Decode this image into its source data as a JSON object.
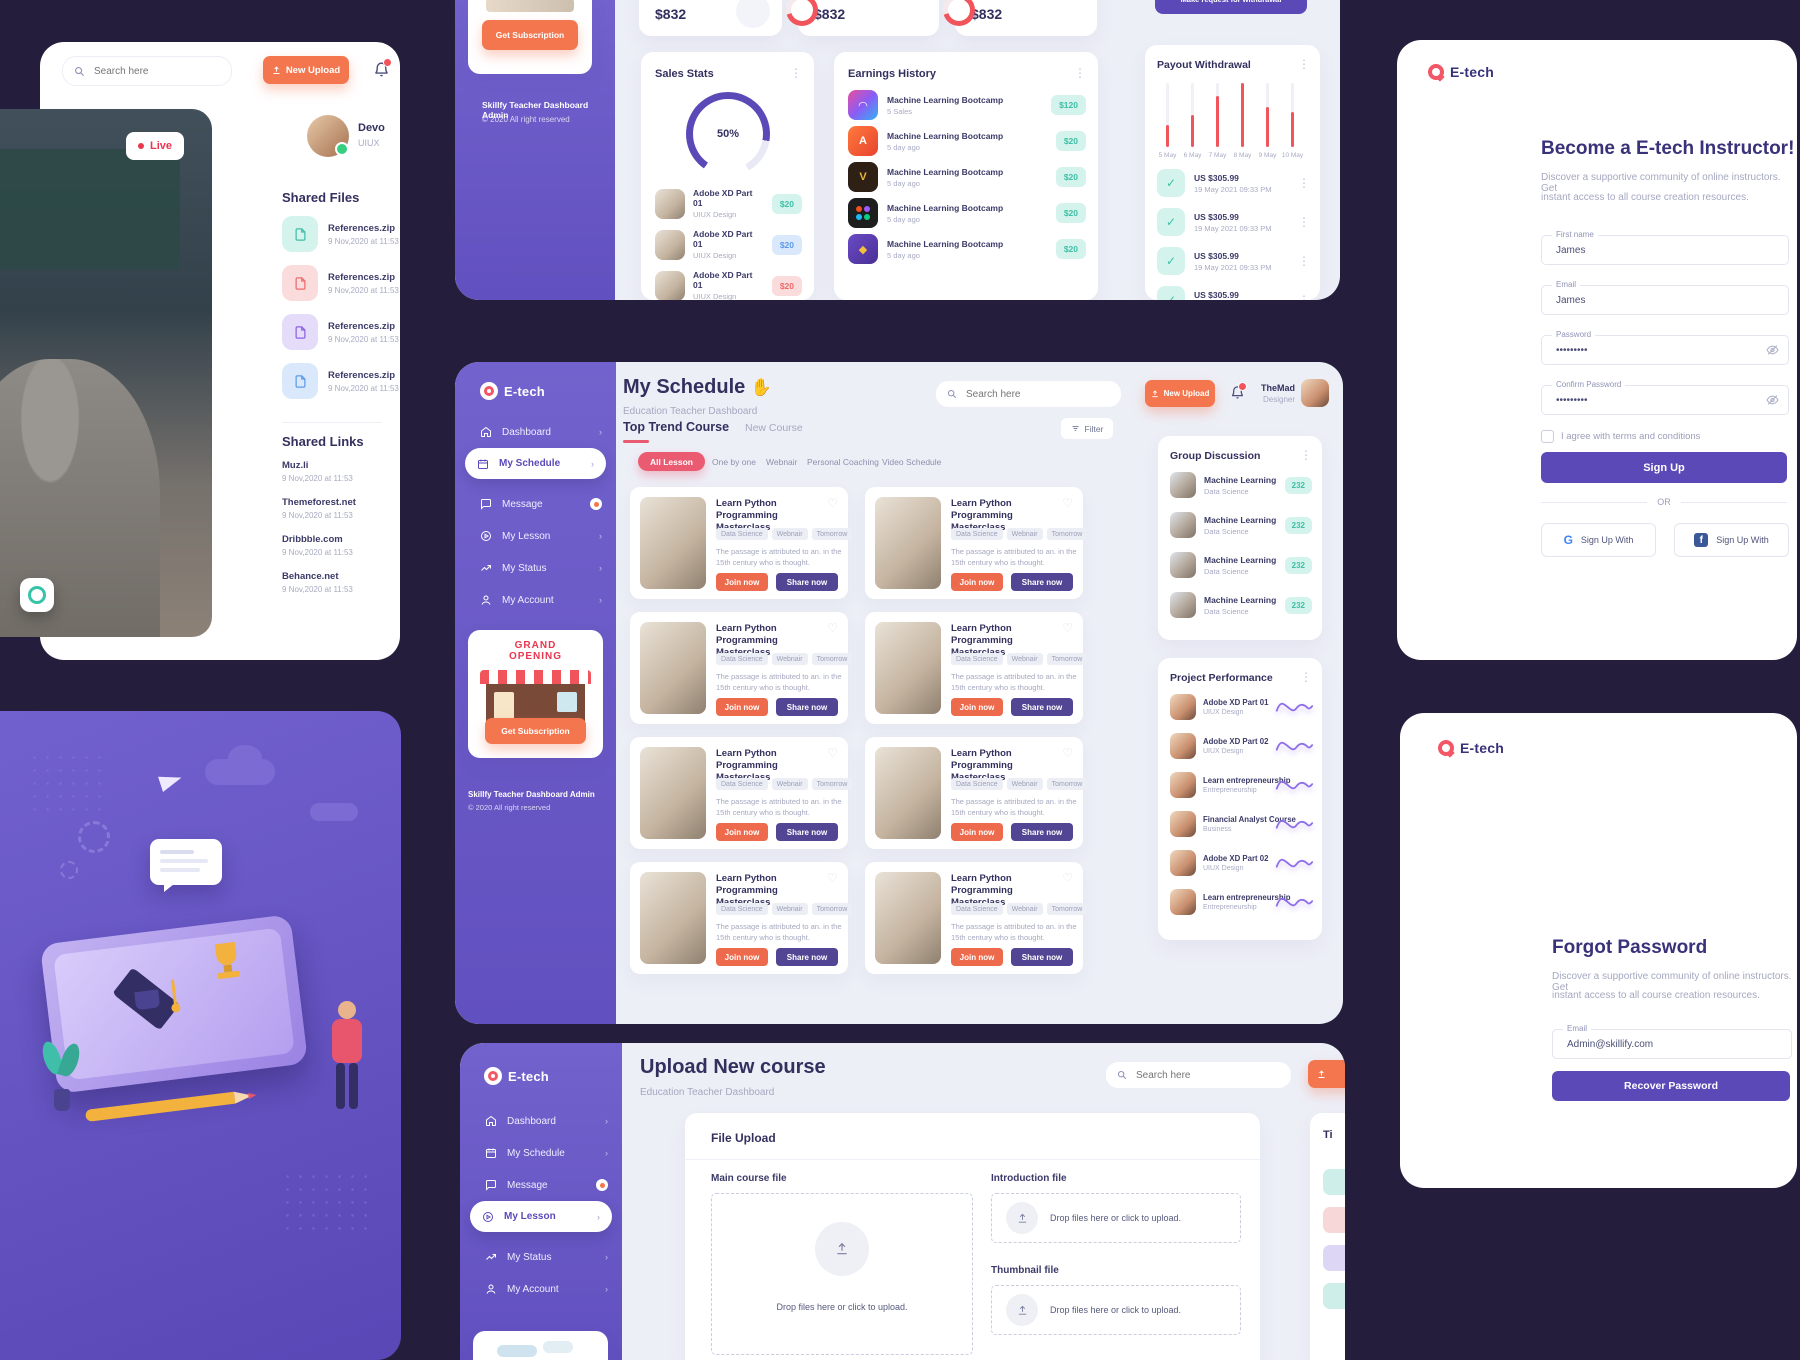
{
  "colors": {
    "bg_dark": "#241e3c",
    "sidebar_purple": "#6d5bc7",
    "accent_orange": "#f4764f",
    "accent_red_pill": "#ea5b72",
    "accent_purple": "#5b49b8",
    "bar_red": "#f2545b",
    "teal": "#3dbfa6",
    "navy_text": "#33305e",
    "muted": "#a5a8c0"
  },
  "nav": {
    "dashboard": "Dashboard",
    "my_schedule": "My Schedule",
    "message": "Message",
    "my_lesson": "My Lesson",
    "my_status": "My Status",
    "my_account": "My Account"
  },
  "sidebar_common": {
    "subscription_label": "Get Subscription",
    "footer_line1": "Skillfy Teacher Dashboard Admin",
    "footer_line2": "© 2020 All right reserved",
    "promo_line1": "GRAND",
    "promo_line2": "OPENING"
  },
  "top_left": {
    "search_placeholder": "Search here",
    "new_upload_label": "New Upload",
    "live_label": "Live",
    "profile": {
      "name": "Devo",
      "role": "UIUX"
    },
    "shared_files": {
      "title": "Shared Files",
      "items": [
        {
          "name": "References.zip",
          "date": "9 Nov,2020 at 11:53",
          "tone": "tone-teal"
        },
        {
          "name": "References.zip",
          "date": "9 Nov,2020 at 11:53",
          "tone": "tone-pink"
        },
        {
          "name": "References.zip",
          "date": "9 Nov,2020 at 11:53",
          "tone": "tone-purple"
        },
        {
          "name": "References.zip",
          "date": "9 Nov,2020 at 11:53",
          "tone": "tone-blue"
        }
      ]
    },
    "shared_links": {
      "title": "Shared Links",
      "items": [
        {
          "name": "Muz.li",
          "date": "9 Nov,2020 at 11:53"
        },
        {
          "name": "Themeforest.net",
          "date": "9 Nov,2020 at 11:53"
        },
        {
          "name": "Dribbble.com",
          "date": "9 Nov,2020 at 11:53"
        },
        {
          "name": "Behance.net",
          "date": "9 Nov,2020 at 11:53"
        }
      ]
    }
  },
  "dashboard_top": {
    "stats": [
      {
        "value": "$832"
      },
      {
        "value": "$832"
      },
      {
        "value": "$832"
      }
    ],
    "sales_stats": {
      "title": "Sales Stats",
      "gauge_value": "50%",
      "items": [
        {
          "title": "Adobe XD Part 01",
          "subtitle": "UIUX Design",
          "price": "$20",
          "tone": "tone-teal"
        },
        {
          "title": "Adobe XD Part 01",
          "subtitle": "UIUX Design",
          "price": "$20",
          "tone": "tone-blue"
        },
        {
          "title": "Adobe XD Part 01",
          "subtitle": "UIUX Design",
          "price": "$20",
          "tone": "tone-pink"
        }
      ]
    },
    "earnings_history": {
      "title": "Earnings History",
      "items": [
        {
          "title": "Machine Learning Bootcamp",
          "subtitle": "5 Sales",
          "price": "$120"
        },
        {
          "title": "Machine Learning Bootcamp",
          "subtitle": "5 day ago",
          "price": "$20"
        },
        {
          "title": "Machine Learning Bootcamp",
          "subtitle": "5 day ago",
          "price": "$20"
        },
        {
          "title": "Machine Learning Bootcamp",
          "subtitle": "5 day ago",
          "price": "$20"
        },
        {
          "title": "Machine Learning Bootcamp",
          "subtitle": "5 day ago",
          "price": "$20"
        }
      ]
    },
    "payout": {
      "request_label": "Make request for withdrawal",
      "title": "Payout Withdrawal",
      "chart_data": {
        "type": "bar",
        "categories": [
          "5 May",
          "6 May",
          "7 May",
          "8 May",
          "9 May",
          "10 May"
        ],
        "values": [
          35,
          50,
          80,
          100,
          62,
          55
        ],
        "bars": [
          {
            "label": "5 May",
            "value": 35
          },
          {
            "label": "6 May",
            "value": 50
          },
          {
            "label": "7 May",
            "value": 80
          },
          {
            "label": "8 May",
            "value": 100
          },
          {
            "label": "9 May",
            "value": 62
          },
          {
            "label": "10 May",
            "value": 55
          }
        ]
      },
      "items": [
        {
          "amount": "US $305.99",
          "time": "19 May 2021 09:33 PM"
        },
        {
          "amount": "US $305.99",
          "time": "19 May 2021 09:33 PM"
        },
        {
          "amount": "US $305.99",
          "time": "19 May 2021 09:33 PM"
        },
        {
          "amount": "US $305.99",
          "time": "19 May 2021 09:33 PM"
        }
      ]
    }
  },
  "signup": {
    "brand": "E-tech",
    "title": "Become a E-tech Instructor!",
    "subtitle_line1": "Discover a supportive community of online instructors. Get",
    "subtitle_line2": "instant access to all course creation resources.",
    "first_name": {
      "label": "First name",
      "value": "James"
    },
    "email": {
      "label": "Email",
      "value": "James"
    },
    "password": {
      "label": "Password",
      "value": "•••••••••"
    },
    "confirm_password": {
      "label": "Confirm Password",
      "value": "•••••••••"
    },
    "terms_label": "I agree with terms and conditions",
    "submit_label": "Sign Up",
    "divider_label": "OR",
    "google_label": "Sign Up With",
    "facebook_label": "Sign Up With"
  },
  "schedule": {
    "brand": "E-tech",
    "title": "My Schedule",
    "title_emoji": "✋",
    "subtitle": "Education Teacher Dashboard",
    "search_placeholder": "Search here",
    "new_upload_label": "New Upload",
    "user_name": "TheMad",
    "user_role": "Designer",
    "tab_active": "Top Trend Course",
    "tab_inactive": "New Course",
    "filter_label": "Filter",
    "filters": {
      "all": "All Lesson",
      "one": "One by one",
      "web": "Webnair",
      "coach": "Personal Coaching",
      "video": "Video Schedule"
    },
    "courses": [
      {
        "title": "Learn Python Programming Masterclass",
        "tag1": "Data Science",
        "tag2": "Webnair",
        "tag3": "Tomorrow",
        "desc1": "The passage is attributed to an. in the",
        "desc2": "15th century who is thought.",
        "join_label": "Join now",
        "share_label": "Share now"
      },
      {
        "title": "Learn Python Programming Masterclass",
        "tag1": "Data Science",
        "tag2": "Webnair",
        "tag3": "Tomorrow",
        "desc1": "The passage is attributed to an. in the",
        "desc2": "15th century who is thought.",
        "join_label": "Join now",
        "share_label": "Share now"
      },
      {
        "title": "Learn Python Programming Masterclass",
        "tag1": "Data Science",
        "tag2": "Webnair",
        "tag3": "Tomorrow",
        "desc1": "The passage is attributed to an. in the",
        "desc2": "15th century who is thought.",
        "join_label": "Join now",
        "share_label": "Share now"
      },
      {
        "title": "Learn Python Programming Masterclass",
        "tag1": "Data Science",
        "tag2": "Webnair",
        "tag3": "Tomorrow",
        "desc1": "The passage is attributed to an. in the",
        "desc2": "15th century who is thought.",
        "join_label": "Join now",
        "share_label": "Share now"
      },
      {
        "title": "Learn Python Programming Masterclass",
        "tag1": "Data Science",
        "tag2": "Webnair",
        "tag3": "Tomorrow",
        "desc1": "The passage is attributed to an. in the",
        "desc2": "15th century who is thought.",
        "join_label": "Join now",
        "share_label": "Share now"
      },
      {
        "title": "Learn Python Programming Masterclass",
        "tag1": "Data Science",
        "tag2": "Webnair",
        "tag3": "Tomorrow",
        "desc1": "The passage is attributed to an. in the",
        "desc2": "15th century who is thought.",
        "join_label": "Join now",
        "share_label": "Share now"
      },
      {
        "title": "Learn Python Programming Masterclass",
        "tag1": "Data Science",
        "tag2": "Webnair",
        "tag3": "Tomorrow",
        "desc1": "The passage is attributed to an. in the",
        "desc2": "15th century who is thought.",
        "join_label": "Join now",
        "share_label": "Share now"
      },
      {
        "title": "Learn Python Programming Masterclass",
        "tag1": "Data Science",
        "tag2": "Webnair",
        "tag3": "Tomorrow",
        "desc1": "The passage is attributed to an. in the",
        "desc2": "15th century who is thought.",
        "join_label": "Join now",
        "share_label": "Share now"
      }
    ],
    "group_discussion": {
      "title": "Group Discussion",
      "items": [
        {
          "title": "Machine Learning",
          "subtitle": "Data Science",
          "count": "232"
        },
        {
          "title": "Machine Learning",
          "subtitle": "Data Science",
          "count": "232"
        },
        {
          "title": "Machine Learning",
          "subtitle": "Data Science",
          "count": "232"
        },
        {
          "title": "Machine Learning",
          "subtitle": "Data Science",
          "count": "232"
        }
      ]
    },
    "project_performance": {
      "title": "Project Performance",
      "items": [
        {
          "title": "Adobe XD Part 01",
          "subtitle": "UIUX Design"
        },
        {
          "title": "Adobe XD Part 02",
          "subtitle": "UIUX Design"
        },
        {
          "title": "Learn entrepreneurship",
          "subtitle": "Entrepreneurship"
        },
        {
          "title": "Financial Analyst Course",
          "subtitle": "Business"
        },
        {
          "title": "Adobe XD Part 02",
          "subtitle": "UIUX Design"
        },
        {
          "title": "Learn entrepreneurship",
          "subtitle": "Entrepreneurship"
        }
      ]
    }
  },
  "upload": {
    "brand": "E-tech",
    "title": "Upload New course",
    "subtitle": "Education Teacher Dashboard",
    "search_placeholder": "Search here",
    "card_title": "File Upload",
    "main_label": "Main course file",
    "intro_label": "Introduction file",
    "thumb_label": "Thumbnail file",
    "drop_text": "Drop files here or click to upload.",
    "side_partial_title": "Ti"
  },
  "forgot": {
    "brand": "E-tech",
    "title": "Forgot Password",
    "subtitle_line1": "Discover a supportive community of online instructors. Get",
    "subtitle_line2": "instant access to all course creation resources.",
    "email": {
      "label": "Email",
      "value": "Admin@skillify.com"
    },
    "submit_label": "Recover Password"
  }
}
